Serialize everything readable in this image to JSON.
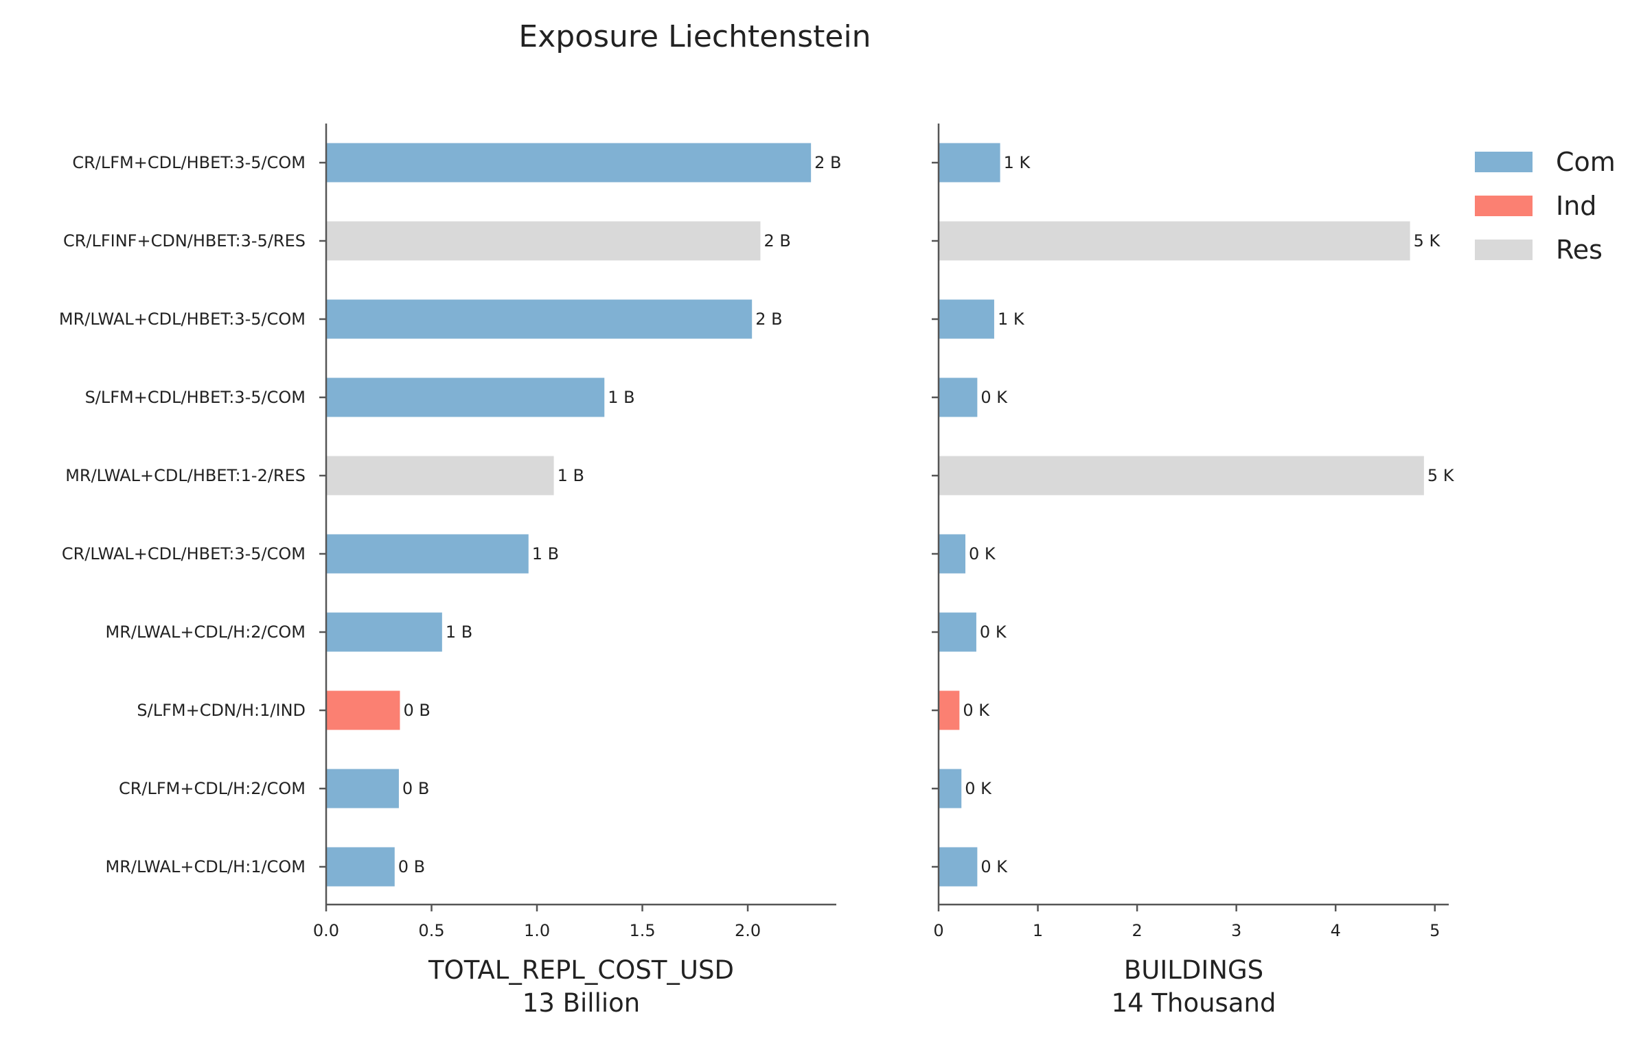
{
  "colors": {
    "Com": "#80b1d3",
    "Ind": "#fb8072",
    "Res": "#d9d9d9",
    "axis": "#555555"
  },
  "chart_data": {
    "type": "bar",
    "orientation": "horizontal",
    "title": "Exposure Liechtenstein",
    "categories": [
      "CR/LFM+CDL/HBET:3-5/COM",
      "CR/LFINF+CDN/HBET:3-5/RES",
      "MR/LWAL+CDL/HBET:3-5/COM",
      "S/LFM+CDL/HBET:3-5/COM",
      "MR/LWAL+CDL/HBET:1-2/RES",
      "CR/LWAL+CDL/HBET:3-5/COM",
      "MR/LWAL+CDL/H:2/COM",
      "S/LFM+CDN/H:1/IND",
      "CR/LFM+CDL/H:2/COM",
      "MR/LWAL+CDL/H:1/COM"
    ],
    "occupancy": [
      "Com",
      "Res",
      "Com",
      "Com",
      "Res",
      "Com",
      "Com",
      "Ind",
      "Com",
      "Com"
    ],
    "legend": {
      "placement": "top-right",
      "entries": [
        "Com",
        "Ind",
        "Res"
      ]
    },
    "panels": [
      {
        "xlabel": "TOTAL_REPL_COST_USD",
        "xlabel_sub": "13 Billion",
        "values": [
          2.3,
          2.06,
          2.02,
          1.32,
          1.08,
          0.96,
          0.55,
          0.35,
          0.345,
          0.325
        ],
        "bar_labels": [
          "2 B",
          "2 B",
          "2 B",
          "1 B",
          "1 B",
          "1 B",
          "1 B",
          "0 B",
          "0 B",
          "0 B"
        ],
        "xlim": [
          0,
          2.42
        ],
        "xticks": [
          0.0,
          0.5,
          1.0,
          1.5,
          2.0
        ],
        "xtick_labels": [
          "0.0",
          "0.5",
          "1.0",
          "1.5",
          "2.0"
        ]
      },
      {
        "xlabel": "BUILDINGS",
        "xlabel_sub": "14 Thousand",
        "values": [
          0.62,
          4.75,
          0.56,
          0.39,
          4.89,
          0.27,
          0.38,
          0.21,
          0.23,
          0.39
        ],
        "bar_labels": [
          "1 K",
          "5 K",
          "1 K",
          "0 K",
          "5 K",
          "0 K",
          "0 K",
          "0 K",
          "0 K",
          "0 K"
        ],
        "xlim": [
          0,
          5.14
        ],
        "xticks": [
          0,
          1,
          2,
          3,
          4,
          5
        ],
        "xtick_labels": [
          "0",
          "1",
          "2",
          "3",
          "4",
          "5"
        ]
      }
    ]
  }
}
